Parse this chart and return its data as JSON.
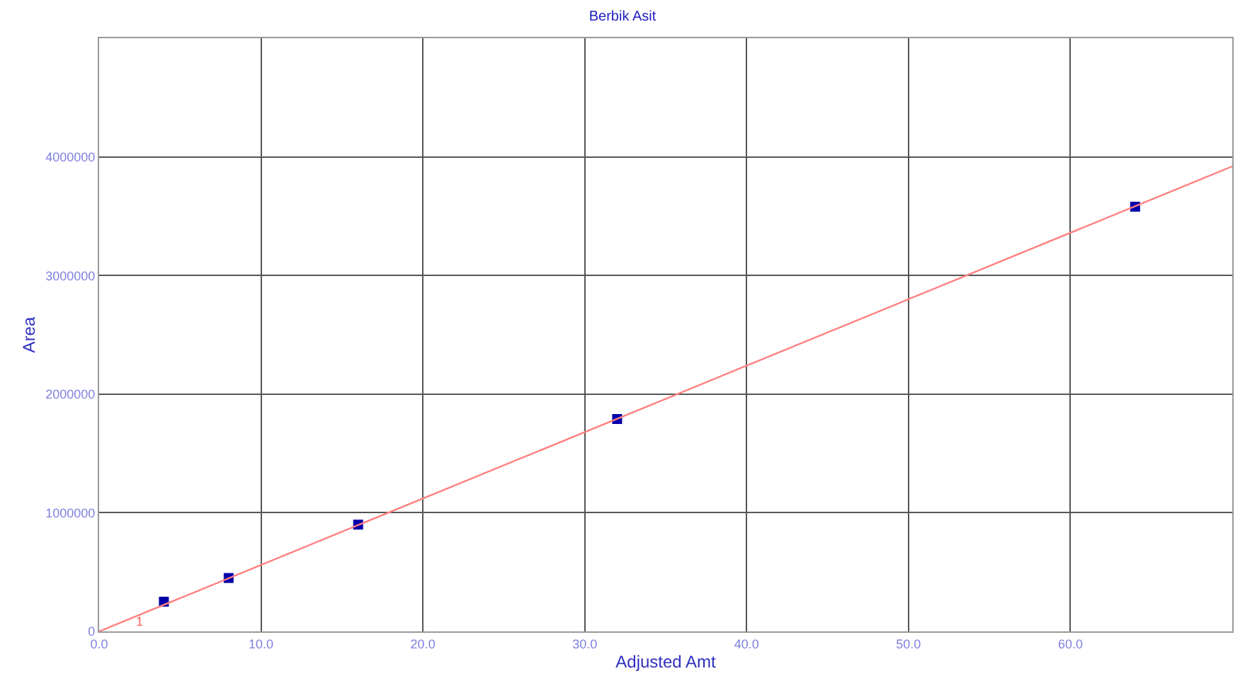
{
  "chart_data": {
    "type": "scatter",
    "title": "Berbik Asit",
    "xlabel": "Adjusted Amt",
    "ylabel": "Area",
    "x": [
      4,
      8,
      16,
      32,
      64
    ],
    "series": [
      {
        "color": "#0000aa",
        "values": [
          250000,
          450000,
          900000,
          1790000,
          3580000
        ],
        "marker": "square"
      },
      {
        "type": "line",
        "color": "#ff8080",
        "x": [
          0,
          70
        ],
        "values": [
          0,
          3920000
        ],
        "marker": "none",
        "line_style": "solid"
      }
    ],
    "xlim": [
      0,
      70
    ],
    "ylim": [
      0,
      5000000
    ],
    "xticks": [
      {
        "value": 0,
        "label": "0.0"
      },
      {
        "value": 10,
        "label": "10.0"
      },
      {
        "value": 20,
        "label": "20.0"
      },
      {
        "value": 30,
        "label": "30.0"
      },
      {
        "value": 40,
        "label": "40.0"
      },
      {
        "value": 50,
        "label": "50.0"
      },
      {
        "value": 60,
        "label": "60.0"
      }
    ],
    "yticks": [
      0,
      1000000,
      2000000,
      3000000,
      4000000
    ],
    "annotations": [
      {
        "text": "1",
        "x": 2.5,
        "y": 80000
      }
    ],
    "grid": true
  }
}
